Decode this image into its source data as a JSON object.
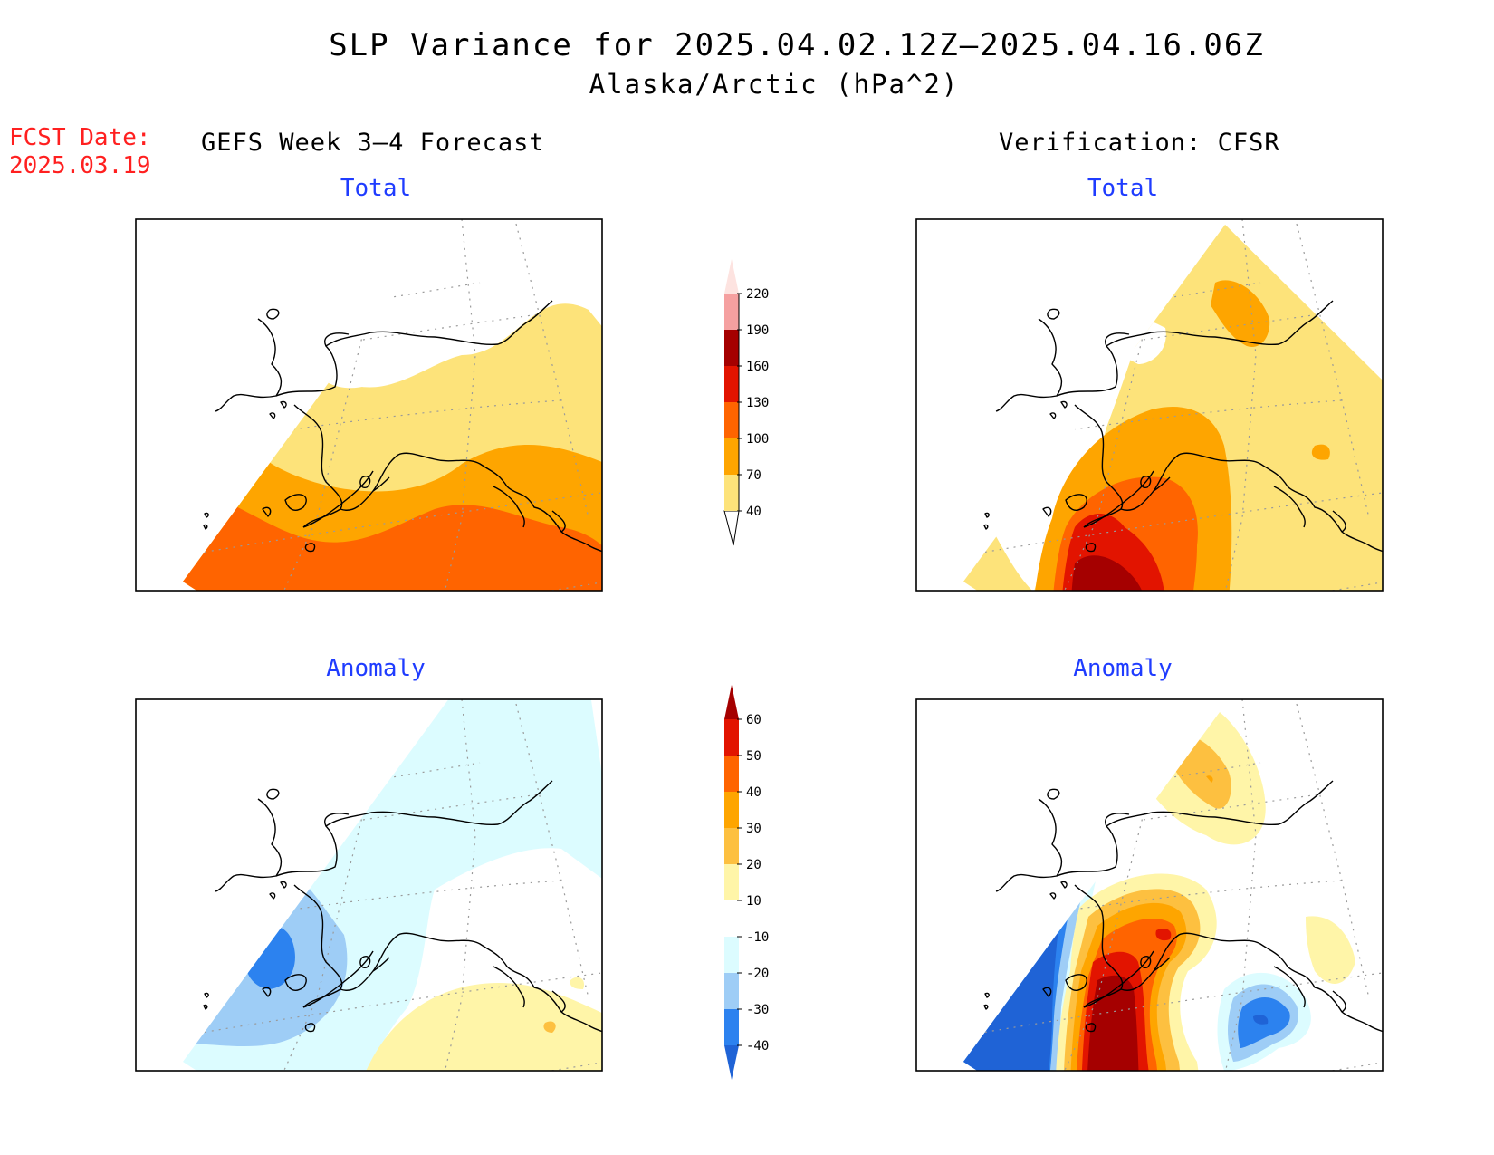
{
  "title": {
    "line1": "SLP Variance for 2025.04.02.12Z—2025.04.16.06Z",
    "line2": "Alaska/Arctic (hPa^2)"
  },
  "forecast_date": {
    "label": "FCST Date:",
    "value": "2025.03.19"
  },
  "columns": {
    "left": "GEFS Week 3—4 Forecast",
    "right": "Verification: CFSR"
  },
  "panels": {
    "top_left": "Total",
    "top_right": "Total",
    "bottom_left": "Anomaly",
    "bottom_right": "Anomaly"
  },
  "colorbars": {
    "total": {
      "labels": [
        "40",
        "70",
        "100",
        "130",
        "160",
        "190",
        "220"
      ],
      "colors": [
        "#fde37a",
        "#fea500",
        "#ff6400",
        "#e21400",
        "#a50000",
        "#f5a0a0",
        "#fde3e0"
      ],
      "open_below_color": "#ffffff"
    },
    "anomaly": {
      "labels": [
        "-40",
        "-30",
        "-20",
        "-10",
        "10",
        "20",
        "30",
        "40",
        "50",
        "60"
      ],
      "colors": [
        "#1f63d6",
        "#2c82ef",
        "#9ecdf6",
        "#dcfcff",
        "#ffffff",
        "#fff5a8",
        "#fdc040",
        "#fea500",
        "#ff6400",
        "#e21400",
        "#a50000"
      ]
    }
  }
}
